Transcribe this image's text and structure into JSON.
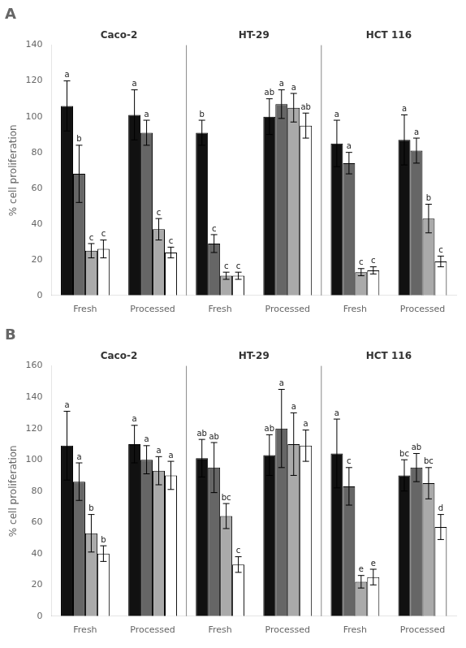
{
  "chart_data": [
    {
      "type": "bar",
      "title": "A",
      "ylabel": "% cell proliferation",
      "categories": [
        "Fresh",
        "Processed",
        "Fresh",
        "Processed",
        "Fresh",
        "Processed"
      ],
      "cell_lines": [
        "Caco-2",
        "HT-29",
        "HCT 116"
      ],
      "ylim": [
        0,
        140
      ],
      "yticks": [
        0,
        20,
        40,
        60,
        80,
        100,
        120,
        140
      ],
      "grid": false,
      "series": [
        {
          "color": "#111111",
          "values": [
            106,
            101,
            91,
            100,
            85,
            87
          ],
          "errors": [
            14,
            14,
            7,
            10,
            13,
            14
          ],
          "letters": [
            "a",
            "a",
            "b",
            "ab",
            "a",
            "a"
          ]
        },
        {
          "color": "#666666",
          "values": [
            68,
            91,
            29,
            107,
            74,
            81
          ],
          "errors": [
            16,
            7,
            5,
            8,
            6,
            7
          ],
          "letters": [
            "b",
            "a",
            "c",
            "a",
            "a",
            "a"
          ]
        },
        {
          "color": "#aaaaaa",
          "values": [
            25,
            37,
            11,
            105,
            13,
            43
          ],
          "errors": [
            4,
            6,
            2,
            8,
            2,
            8
          ],
          "letters": [
            "c",
            "c",
            "c",
            "a",
            "c",
            "b"
          ]
        },
        {
          "color": "#ffffff",
          "values": [
            26,
            24,
            11,
            95,
            14,
            19
          ],
          "errors": [
            5,
            3,
            2,
            7,
            2,
            3
          ],
          "letters": [
            "c",
            "c",
            "c",
            "ab",
            "c",
            "c"
          ]
        }
      ]
    },
    {
      "type": "bar",
      "title": "B",
      "ylabel": "% cell proliferation",
      "categories": [
        "Fresh",
        "Processed",
        "Fresh",
        "Processed",
        "Fresh",
        "Processed"
      ],
      "cell_lines": [
        "Caco-2",
        "HT-29",
        "HCT 116"
      ],
      "ylim": [
        0,
        160
      ],
      "yticks": [
        0,
        20,
        40,
        60,
        80,
        100,
        120,
        140,
        160
      ],
      "grid": false,
      "series": [
        {
          "color": "#111111",
          "values": [
            109,
            110,
            101,
            103,
            104,
            90
          ],
          "errors": [
            22,
            12,
            12,
            13,
            22,
            10
          ],
          "letters": [
            "a",
            "a",
            "ab",
            "ab",
            "a",
            "bc"
          ]
        },
        {
          "color": "#666666",
          "values": [
            86,
            100,
            95,
            120,
            83,
            95
          ],
          "errors": [
            12,
            9,
            16,
            25,
            12,
            9
          ],
          "letters": [
            "a",
            "a",
            "ab",
            "a",
            "c",
            "ab"
          ]
        },
        {
          "color": "#aaaaaa",
          "values": [
            53,
            93,
            64,
            110,
            22,
            85
          ],
          "errors": [
            12,
            9,
            8,
            20,
            4,
            10
          ],
          "letters": [
            "b",
            "a",
            "bc",
            "a",
            "e",
            "bc"
          ]
        },
        {
          "color": "#ffffff",
          "values": [
            40,
            90,
            33,
            109,
            25,
            57
          ],
          "errors": [
            5,
            9,
            5,
            10,
            5,
            8
          ],
          "letters": [
            "b",
            "a",
            "c",
            "a",
            "e",
            "d"
          ]
        }
      ]
    }
  ]
}
